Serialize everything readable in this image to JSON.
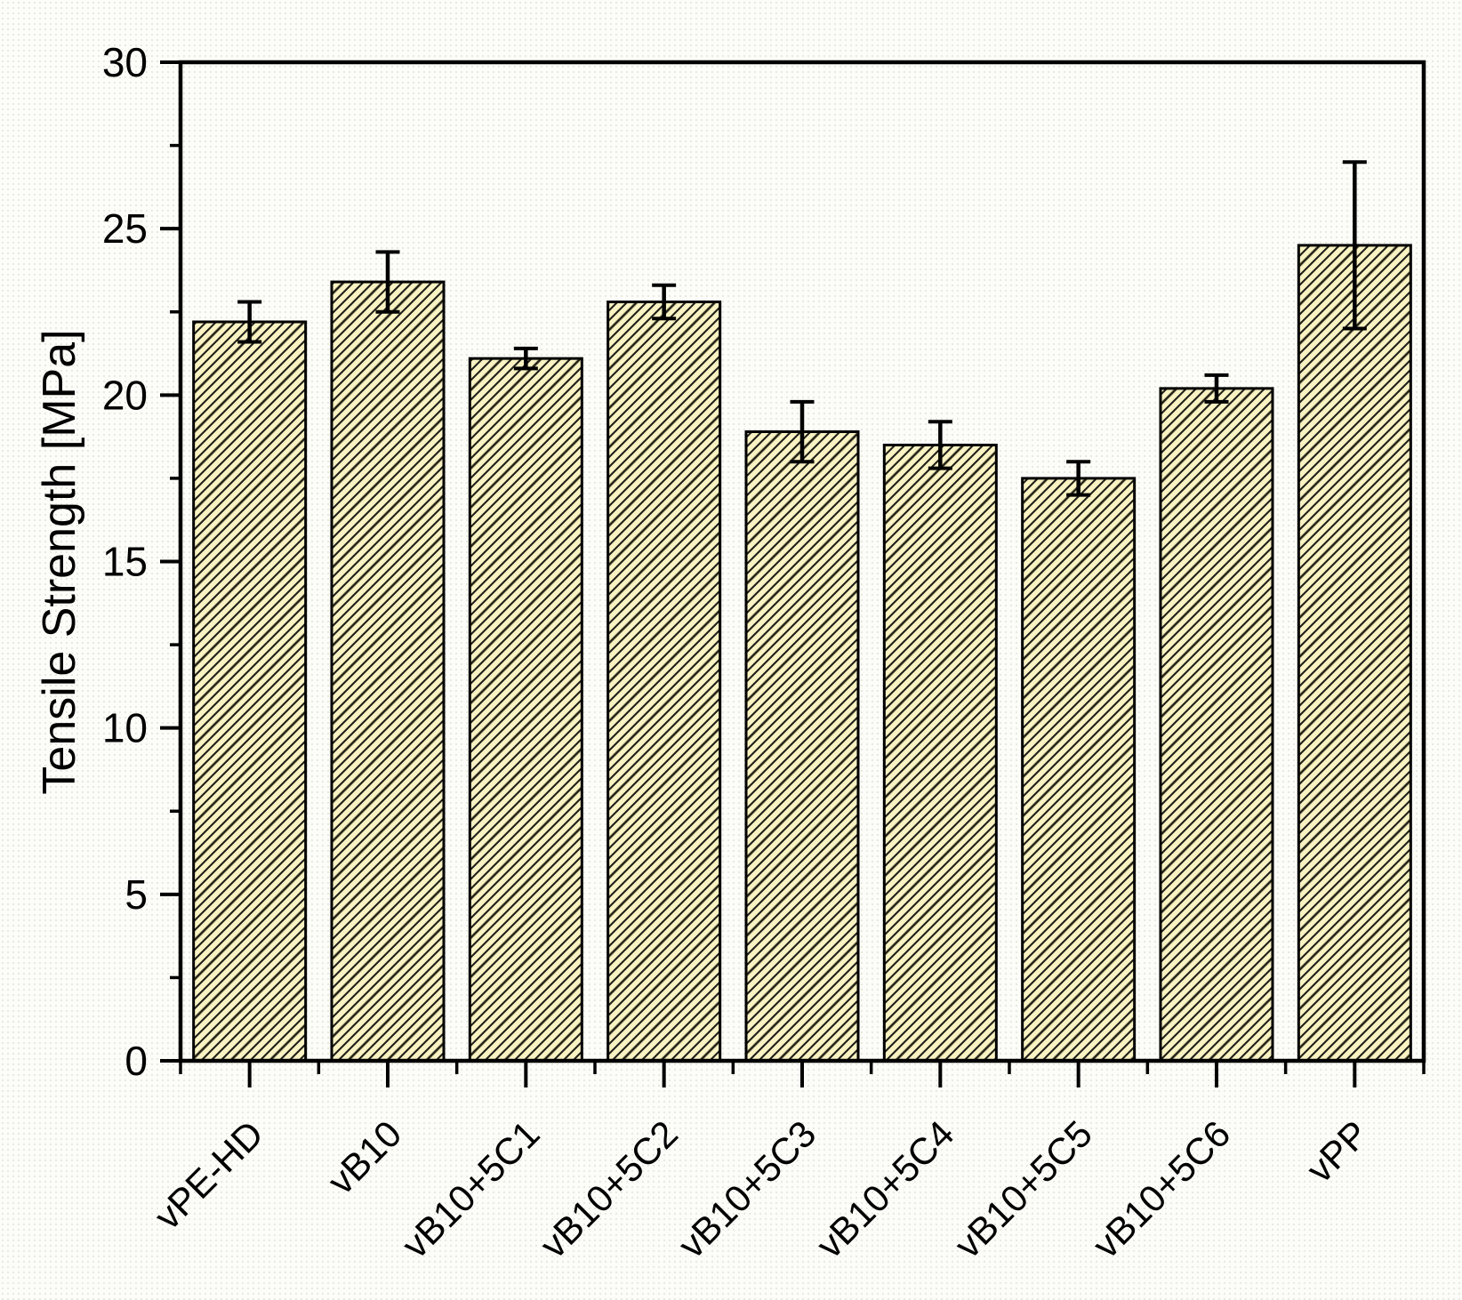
{
  "figure": {
    "background_color": "#fcfcf8",
    "frame_color": "#000000"
  },
  "chart_data": {
    "type": "bar",
    "title": "",
    "xlabel": "",
    "ylabel": "Tensile Strength [MPa]",
    "categories": [
      "vPE-HD",
      "vB10",
      "vB10+5C1",
      "vB10+5C2",
      "vB10+5C3",
      "vB10+5C4",
      "vB10+5C5",
      "vB10+5C6",
      "vPP"
    ],
    "values": [
      22.2,
      23.4,
      21.1,
      22.8,
      18.9,
      18.5,
      17.5,
      20.2,
      24.5
    ],
    "errors": [
      0.6,
      0.9,
      0.3,
      0.5,
      0.9,
      0.7,
      0.5,
      0.4,
      2.5
    ],
    "ylim": [
      0,
      30
    ],
    "ytick_labels": [
      0,
      5,
      10,
      15,
      20,
      25,
      30
    ],
    "ytick_minor_step": 2.5,
    "grid": false,
    "legend": "none",
    "bar_hatch": "diagonal-forward",
    "bar_fill": "#f9f2c2",
    "bar_hatch_color": "#20201a",
    "bar_edge_color": "#000000",
    "error_color": "#000000"
  }
}
